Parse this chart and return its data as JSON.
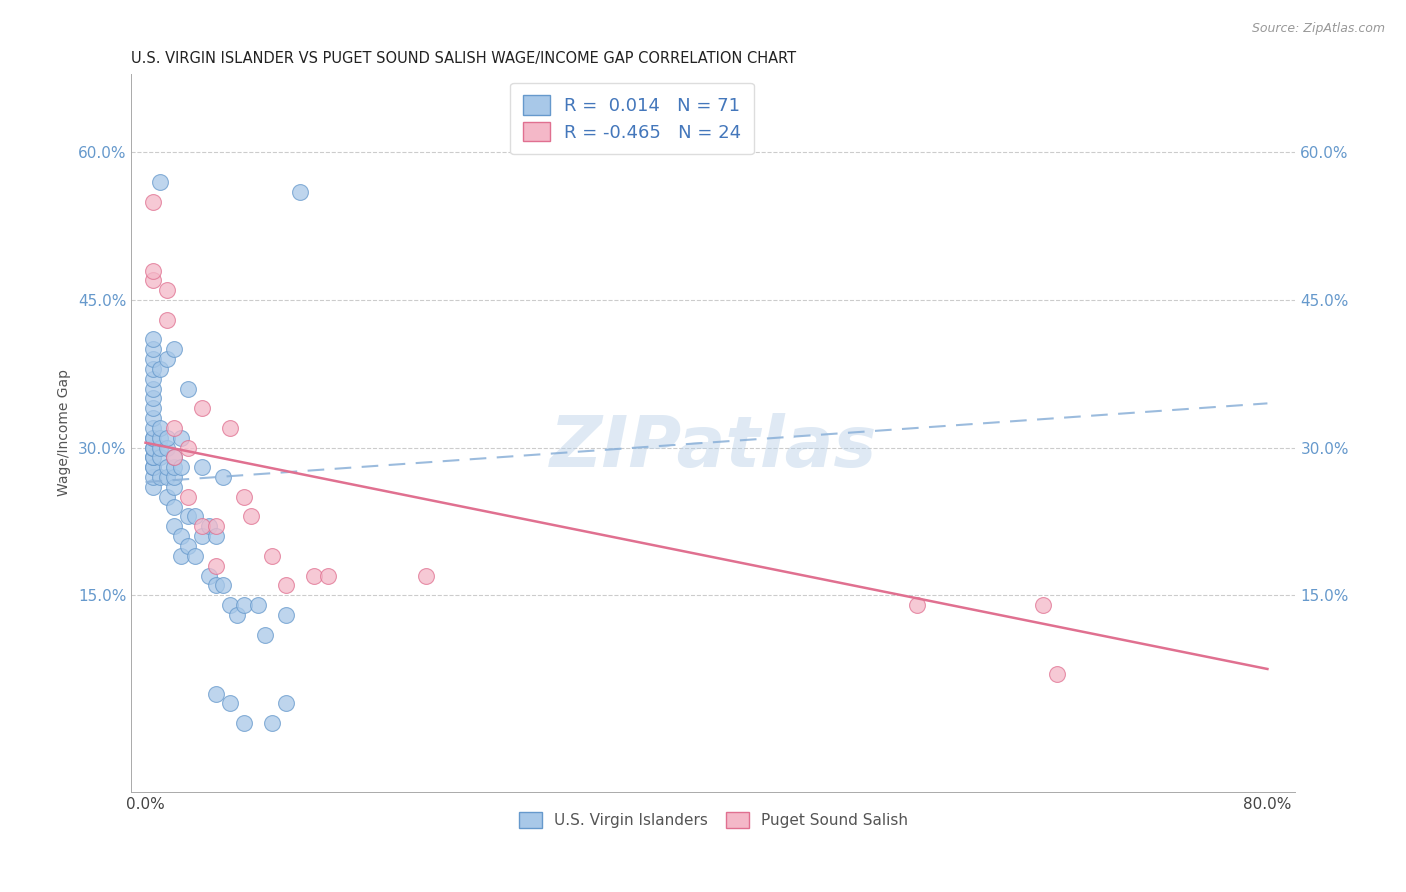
{
  "title": "U.S. VIRGIN ISLANDER VS PUGET SOUND SALISH WAGE/INCOME GAP CORRELATION CHART",
  "source": "Source: ZipAtlas.com",
  "ylabel": "Wage/Income Gap",
  "xlim": [
    -0.01,
    0.82
  ],
  "ylim": [
    -0.05,
    0.68
  ],
  "x_ticks": [
    0.0,
    0.2,
    0.4,
    0.6,
    0.8
  ],
  "x_tick_labels": [
    "0.0%",
    "",
    "",
    "",
    "80.0%"
  ],
  "y_ticks": [
    0.15,
    0.3,
    0.45,
    0.6
  ],
  "y_tick_labels": [
    "15.0%",
    "30.0%",
    "45.0%",
    "60.0%"
  ],
  "legend_label1": "U.S. Virgin Islanders",
  "legend_label2": "Puget Sound Salish",
  "R1": "0.014",
  "N1": "71",
  "R2": "-0.465",
  "N2": "24",
  "blue_color": "#a8c8e8",
  "blue_edge_color": "#6699cc",
  "pink_color": "#f4b8c8",
  "pink_edge_color": "#e07090",
  "blue_line_color": "#8ab0d8",
  "pink_line_color": "#e07090",
  "watermark": "ZIPatlas",
  "blue_x": [
    0.005,
    0.005,
    0.005,
    0.005,
    0.005,
    0.005,
    0.005,
    0.005,
    0.005,
    0.005,
    0.005,
    0.005,
    0.005,
    0.005,
    0.005,
    0.005,
    0.005,
    0.005,
    0.005,
    0.005,
    0.01,
    0.01,
    0.01,
    0.01,
    0.01,
    0.01,
    0.01,
    0.015,
    0.015,
    0.015,
    0.015,
    0.015,
    0.015,
    0.02,
    0.02,
    0.02,
    0.02,
    0.02,
    0.02,
    0.02,
    0.025,
    0.025,
    0.025,
    0.025,
    0.03,
    0.03,
    0.03,
    0.035,
    0.035,
    0.04,
    0.04,
    0.045,
    0.045,
    0.05,
    0.05,
    0.05,
    0.055,
    0.055,
    0.06,
    0.06,
    0.065,
    0.07,
    0.07,
    0.08,
    0.085,
    0.09,
    0.1,
    0.1,
    0.11
  ],
  "blue_y": [
    0.26,
    0.27,
    0.28,
    0.28,
    0.29,
    0.29,
    0.3,
    0.3,
    0.31,
    0.31,
    0.32,
    0.33,
    0.34,
    0.35,
    0.36,
    0.37,
    0.38,
    0.39,
    0.4,
    0.41,
    0.27,
    0.29,
    0.3,
    0.31,
    0.32,
    0.38,
    0.57,
    0.25,
    0.27,
    0.28,
    0.3,
    0.31,
    0.39,
    0.22,
    0.24,
    0.26,
    0.27,
    0.28,
    0.29,
    0.4,
    0.19,
    0.21,
    0.28,
    0.31,
    0.2,
    0.23,
    0.36,
    0.19,
    0.23,
    0.21,
    0.28,
    0.17,
    0.22,
    0.05,
    0.16,
    0.21,
    0.16,
    0.27,
    0.04,
    0.14,
    0.13,
    0.02,
    0.14,
    0.14,
    0.11,
    0.02,
    0.04,
    0.13,
    0.56
  ],
  "pink_x": [
    0.005,
    0.005,
    0.005,
    0.015,
    0.015,
    0.02,
    0.02,
    0.03,
    0.03,
    0.04,
    0.04,
    0.05,
    0.05,
    0.06,
    0.07,
    0.075,
    0.09,
    0.1,
    0.12,
    0.13,
    0.2,
    0.55,
    0.64,
    0.65
  ],
  "pink_y": [
    0.47,
    0.48,
    0.55,
    0.43,
    0.46,
    0.29,
    0.32,
    0.25,
    0.3,
    0.22,
    0.34,
    0.18,
    0.22,
    0.32,
    0.25,
    0.23,
    0.19,
    0.16,
    0.17,
    0.17,
    0.17,
    0.14,
    0.14,
    0.07
  ],
  "blue_trend_x": [
    0.0,
    0.8
  ],
  "blue_trend_y": [
    0.265,
    0.345
  ],
  "pink_trend_x": [
    0.0,
    0.8
  ],
  "pink_trend_y": [
    0.305,
    0.075
  ]
}
